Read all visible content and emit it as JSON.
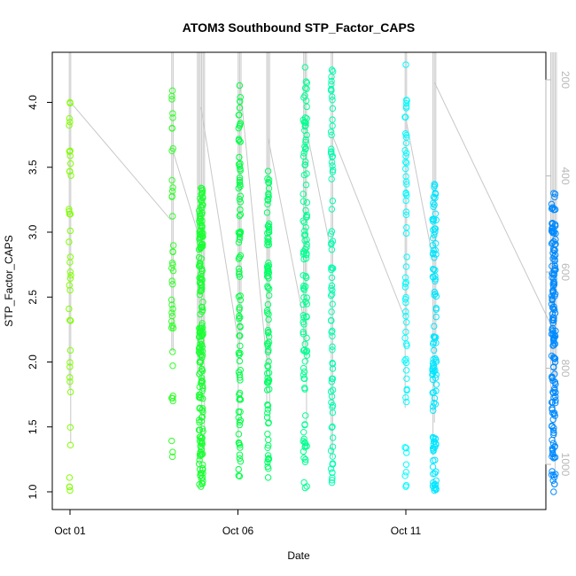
{
  "chart_data": {
    "type": "scatter",
    "title": "ATOM3 Southbound STP_Factor_CAPS",
    "xlabel": "Date",
    "ylabel": "STP_Factor_CAPS",
    "x_ticks": [
      "Oct 01",
      "Oct 06",
      "Oct 11"
    ],
    "y_ticks": [
      "1.0",
      "1.5",
      "2.0",
      "2.5",
      "3.0",
      "3.5",
      "4.0"
    ],
    "y2_ticks": [
      "200",
      "400",
      "600",
      "800",
      "1000"
    ],
    "xlim": [
      0.0,
      14.8
    ],
    "ylim": [
      1.0,
      4.4
    ],
    "y2lim": [
      1050,
      160
    ],
    "grid": false,
    "point_style": "open circle",
    "color_gradient": [
      "#80ff00",
      "#00ff40",
      "#00ffff",
      "#0080ff"
    ],
    "line_color": "#c8c8c8",
    "profiles": [
      {
        "day": 0.0,
        "n": 40,
        "ymin": 1.01,
        "ymax": 4.0
      },
      {
        "day": 3.05,
        "n": 40,
        "ymin": 1.27,
        "ymax": 4.09
      },
      {
        "day": 3.9,
        "n": 200,
        "ymin": 1.04,
        "ymax": 3.34
      },
      {
        "day": 5.05,
        "n": 90,
        "ymin": 1.12,
        "ymax": 4.13
      },
      {
        "day": 5.9,
        "n": 90,
        "ymin": 1.11,
        "ymax": 3.47
      },
      {
        "day": 7.0,
        "n": 110,
        "ymin": 1.03,
        "ymax": 4.27
      },
      {
        "day": 7.8,
        "n": 80,
        "ymin": 1.07,
        "ymax": 4.25
      },
      {
        "day": 10.0,
        "n": 60,
        "ymin": 1.04,
        "ymax": 4.29
      },
      {
        "day": 10.85,
        "n": 110,
        "ymin": 1.01,
        "ymax": 3.37
      },
      {
        "day": 14.4,
        "n": 160,
        "ymin": 1.0,
        "ymax": 3.3
      }
    ]
  }
}
